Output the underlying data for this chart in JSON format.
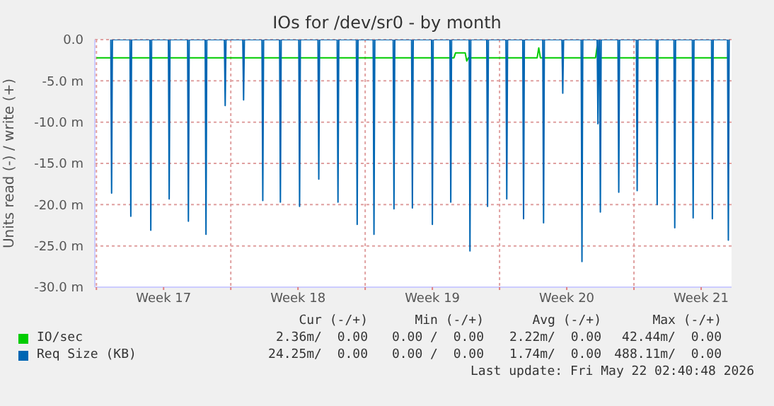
{
  "chart_data": {
    "type": "line",
    "title": "IOs for /dev/sr0 - by month",
    "ylabel": "Units read (-) / write (+)",
    "xlim": [
      "2026-04-19T22:00",
      "2026-05-23T02:00"
    ],
    "xticks": [
      {
        "value": "2026-04-20",
        "label": null
      },
      {
        "value": "2026-04-23T12:00",
        "label": "Week 17"
      },
      {
        "value": "2026-04-27",
        "label": null
      },
      {
        "value": "2026-04-30T12:00",
        "label": "Week 18"
      },
      {
        "value": "2026-05-04",
        "label": null
      },
      {
        "value": "2026-05-07T12:00",
        "label": "Week 19"
      },
      {
        "value": "2026-05-11",
        "label": null
      },
      {
        "value": "2026-05-14T12:00",
        "label": "Week 20"
      },
      {
        "value": "2026-05-18",
        "label": null
      },
      {
        "value": "2026-05-21T12:00",
        "label": "Week 21"
      }
    ],
    "ylim": [
      -30,
      0
    ],
    "yticks": [
      {
        "value": 0,
        "label": "0.0"
      },
      {
        "value": -5,
        "label": "-5.0 m"
      },
      {
        "value": -10,
        "label": "-10.0 m"
      },
      {
        "value": -15,
        "label": "-15.0 m"
      },
      {
        "value": -20,
        "label": "-20.0 m"
      },
      {
        "value": -25,
        "label": "-25.0 m"
      },
      {
        "value": -30,
        "label": "-30.0 m"
      }
    ],
    "grid": true,
    "legend": "bottom",
    "marker": "none",
    "line_style": "solid",
    "series": [
      {
        "name": "IO/sec",
        "color": "#00cc00",
        "x": [
          "2026-04-20T00:00",
          "2026-05-08T15:00",
          "2026-05-08T17:00",
          "2026-05-09T05:00",
          "2026-05-09T07:00",
          "2026-05-09T09:00",
          "2026-05-12T23:00",
          "2026-05-13T01:00",
          "2026-05-13T03:00",
          "2026-05-16T00:00",
          "2026-05-16T02:00",
          "2026-05-16T04:00",
          "2026-05-22T22:00"
        ],
        "values": [
          -2.2,
          -2.2,
          -1.6,
          -1.6,
          -2.6,
          -2.2,
          -2.2,
          -1.0,
          -2.2,
          -2.2,
          -0.8,
          -2.2,
          -2.2
        ]
      },
      {
        "name": "Req Size (KB)",
        "color": "#0066b3",
        "x": [
          "2026-04-20T18:00",
          "2026-04-20T19:00",
          "2026-04-20T20:00",
          "2026-04-21T18:00",
          "2026-04-21T19:00",
          "2026-04-21T20:00",
          "2026-04-22T19:00",
          "2026-04-22T20:00",
          "2026-04-22T21:00",
          "2026-04-23T18:00",
          "2026-04-23T19:00",
          "2026-04-23T20:00",
          "2026-04-24T18:00",
          "2026-04-24T19:00",
          "2026-04-24T20:00",
          "2026-04-25T16:00",
          "2026-04-25T17:00",
          "2026-04-25T18:00",
          "2026-04-26T16:00",
          "2026-04-26T17:00",
          "2026-04-26T18:00",
          "2026-04-27T15:00",
          "2026-04-27T16:00",
          "2026-04-27T17:00",
          "2026-04-28T15:00",
          "2026-04-28T16:00",
          "2026-04-28T17:00",
          "2026-04-29T13:00",
          "2026-04-29T14:00",
          "2026-04-29T15:00",
          "2026-04-30T13:00",
          "2026-04-30T14:00",
          "2026-04-30T15:00",
          "2026-05-01T13:00",
          "2026-05-01T14:00",
          "2026-05-01T15:00",
          "2026-05-02T13:00",
          "2026-05-02T14:00",
          "2026-05-02T15:00",
          "2026-05-03T13:00",
          "2026-05-03T14:00",
          "2026-05-03T15:00",
          "2026-05-04T10:00",
          "2026-05-04T11:00",
          "2026-05-04T12:00",
          "2026-05-05T11:00",
          "2026-05-05T12:00",
          "2026-05-05T13:00",
          "2026-05-06T10:00",
          "2026-05-06T11:00",
          "2026-05-06T12:00",
          "2026-05-07T11:00",
          "2026-05-07T12:00",
          "2026-05-07T13:00",
          "2026-05-08T10:00",
          "2026-05-08T11:00",
          "2026-05-08T12:00",
          "2026-05-09T10:00",
          "2026-05-09T11:00",
          "2026-05-09T12:00",
          "2026-05-10T08:00",
          "2026-05-10T09:00",
          "2026-05-10T10:00",
          "2026-05-11T08:00",
          "2026-05-11T09:00",
          "2026-05-11T10:00",
          "2026-05-12T05:00",
          "2026-05-12T06:00",
          "2026-05-12T07:00",
          "2026-05-13T06:00",
          "2026-05-13T07:00",
          "2026-05-13T08:00",
          "2026-05-14T06:00",
          "2026-05-14T07:00",
          "2026-05-14T08:00",
          "2026-05-15T06:00",
          "2026-05-15T07:00",
          "2026-05-15T08:00",
          "2026-05-16T02:00",
          "2026-05-16T03:00",
          "2026-05-16T04:00",
          "2026-05-16T05:00",
          "2026-05-16T06:00",
          "2026-05-16T07:00",
          "2026-05-17T04:00",
          "2026-05-17T05:00",
          "2026-05-17T06:00",
          "2026-05-18T03:00",
          "2026-05-18T04:00",
          "2026-05-18T05:00",
          "2026-05-19T04:00",
          "2026-05-19T05:00",
          "2026-05-19T06:00",
          "2026-05-20T02:00",
          "2026-05-20T03:00",
          "2026-05-20T04:00",
          "2026-05-21T01:00",
          "2026-05-21T02:00",
          "2026-05-21T03:00",
          "2026-05-22T01:00",
          "2026-05-22T02:00",
          "2026-05-22T03:00",
          "2026-05-22T21:00",
          "2026-05-22T22:00",
          "2026-05-22T23:00"
        ],
        "values": [
          0,
          -18.6,
          0,
          0,
          -21.4,
          0,
          0,
          -23.1,
          0,
          0,
          -19.3,
          0,
          0,
          -22.0,
          0,
          0,
          -23.6,
          0,
          0,
          -8.0,
          0,
          0,
          -7.3,
          0,
          0,
          -19.5,
          0,
          0,
          -19.7,
          0,
          0,
          -20.2,
          0,
          0,
          -16.9,
          0,
          0,
          -19.7,
          0,
          0,
          -22.4,
          0,
          0,
          -23.6,
          0,
          0,
          -20.5,
          0,
          0,
          -20.4,
          0,
          0,
          -22.4,
          0,
          0,
          -19.7,
          0,
          0,
          -25.6,
          0,
          0,
          -20.2,
          0,
          0,
          -19.3,
          0,
          0,
          -21.7,
          0,
          0,
          -22.2,
          0,
          0,
          -6.5,
          0,
          0,
          -26.9,
          0,
          0,
          -10.2,
          0,
          0,
          -20.9,
          0,
          0,
          -18.5,
          0,
          0,
          -18.3,
          0,
          0,
          -20.0,
          0,
          0,
          -22.8,
          0,
          0,
          -21.6,
          0,
          0,
          -21.7,
          0,
          0,
          -24.3,
          0
        ]
      }
    ],
    "annotations": [
      "Cur (-/+)",
      "Min (-/+)",
      "Avg (-/+)",
      "Max (-/+)",
      "2.36m/  0.00",
      "0.00 /  0.00",
      "2.22m/  0.00",
      "42.44m/  0.00",
      "24.25m/  0.00",
      "0.00 /  0.00",
      "1.74m/  0.00",
      "488.11m/  0.00",
      "Last update: Fri May 22 02:40:48 2026"
    ]
  }
}
